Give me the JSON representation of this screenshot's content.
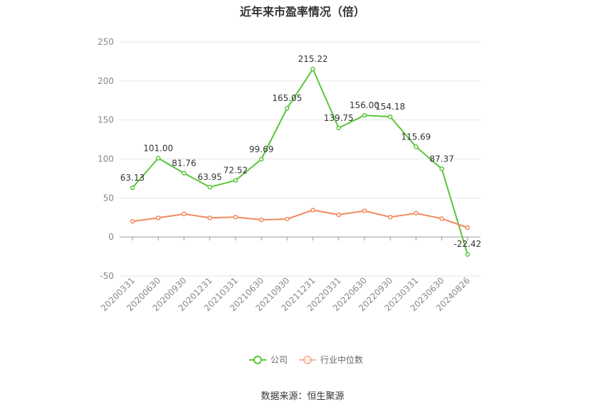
{
  "chart_data": {
    "type": "line",
    "title": "近年来市盈率情况（倍）",
    "categories": [
      "20200331",
      "20200630",
      "20200930",
      "20201231",
      "20210331",
      "20210630",
      "20210930",
      "20211231",
      "20220331",
      "20220630",
      "20220930",
      "20230331",
      "20230630",
      "20240826"
    ],
    "series": [
      {
        "name": "公司",
        "color": "#5ac43a",
        "values": [
          63.13,
          101.0,
          81.76,
          63.95,
          72.52,
          99.69,
          165.05,
          215.22,
          139.75,
          156.0,
          154.18,
          115.69,
          87.37,
          -22.42
        ],
        "labels": [
          "63.13",
          "101.00",
          "81.76",
          "63.95",
          "72.52",
          "99.69",
          "165.05",
          "215.22",
          "139.75",
          "156.00",
          "154.18",
          "115.69",
          "87.37",
          "-22.42"
        ]
      },
      {
        "name": "行业中位数",
        "color": "#f08a5d",
        "values": [
          20.0,
          24.5,
          29.5,
          24.5,
          25.5,
          22.0,
          23.0,
          34.5,
          28.5,
          33.5,
          25.5,
          30.5,
          23.5,
          12.0
        ]
      }
    ],
    "yticks": [
      "-50",
      "0",
      "50",
      "100",
      "150",
      "200",
      "250"
    ],
    "ylim": [
      -50,
      250
    ],
    "grid": true,
    "legend_position": "bottom-center"
  },
  "source": "数据来源：恒生聚源"
}
